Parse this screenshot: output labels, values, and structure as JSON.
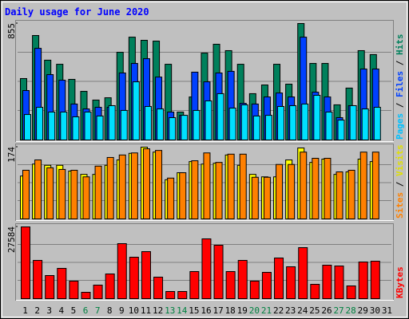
{
  "chart_data": [
    {
      "type": "bar",
      "title": "Daily usage for June 2020",
      "ylim": [
        0,
        855
      ],
      "yticks": [
        855
      ],
      "grid": true,
      "legend_separator": " / ",
      "series": [
        {
          "name": "Hits",
          "color": "#00805c",
          "label_color": "#00805c",
          "values": [
            451,
            767,
            586,
            556,
            445,
            357,
            293,
            310,
            644,
            755,
            732,
            726,
            556,
            205,
            316,
            638,
            703,
            656,
            556,
            340,
            404,
            556,
            410,
            855,
            562,
            562,
            258,
            381,
            656,
            627,
            null
          ]
        },
        {
          "name": "Files",
          "color": "#0040ff",
          "label_color": "#0040ff",
          "values": [
            363,
            673,
            480,
            439,
            264,
            228,
            240,
            240,
            492,
            562,
            597,
            462,
            205,
            181,
            498,
            427,
            492,
            504,
            269,
            264,
            316,
            345,
            316,
            755,
            351,
            316,
            164,
            252,
            521,
            521,
            null
          ]
        },
        {
          "name": "Pages",
          "color": "#00e0ff",
          "label_color": "#00c0ff",
          "values": [
            187,
            240,
            205,
            205,
            170,
            205,
            176,
            252,
            217,
            427,
            246,
            228,
            164,
            181,
            217,
            287,
            340,
            234,
            258,
            176,
            181,
            246,
            252,
            264,
            328,
            205,
            146,
            252,
            228,
            240,
            null
          ]
        }
      ]
    },
    {
      "type": "bar",
      "ylim": [
        0,
        174
      ],
      "yticks": [
        174
      ],
      "grid": true,
      "legend_separator": " / ",
      "series": [
        {
          "name": "Visits",
          "color": "#ffff00",
          "label_color": "#e0e000",
          "values": [
            104,
            133,
            130,
            130,
            116,
            108,
            108,
            130,
            143,
            159,
            174,
            162,
            95,
            112,
            139,
            133,
            135,
            155,
            130,
            108,
            102,
            102,
            143,
            172,
            137,
            145,
            108,
            114,
            145,
            139,
            null
          ]
        },
        {
          "name": "Sites",
          "color": "#ff8000",
          "label_color": "#ff8000",
          "values": [
            118,
            143,
            124,
            120,
            118,
            102,
            128,
            149,
            155,
            160,
            170,
            166,
            99,
            112,
            141,
            160,
            137,
            157,
            157,
            101,
            101,
            132,
            132,
            162,
            147,
            147,
            114,
            118,
            162,
            162,
            null
          ]
        }
      ]
    },
    {
      "type": "bar",
      "ylim": [
        0,
        27584
      ],
      "yticks": [
        27584
      ],
      "grid": true,
      "categories": [
        "1",
        "2",
        "3",
        "4",
        "5",
        "6",
        "7",
        "8",
        "9",
        "10",
        "11",
        "12",
        "13",
        "14",
        "15",
        "16",
        "17",
        "18",
        "19",
        "20",
        "21",
        "22",
        "23",
        "24",
        "25",
        "26",
        "27",
        "28",
        "29",
        "30",
        "31"
      ],
      "category_colors": [
        "#000000",
        "#000000",
        "#000000",
        "#000000",
        "#000000",
        "#008040",
        "#008040",
        "#000000",
        "#000000",
        "#000000",
        "#000000",
        "#000000",
        "#008040",
        "#008040",
        "#000000",
        "#000000",
        "#000000",
        "#000000",
        "#000000",
        "#008040",
        "#008040",
        "#000000",
        "#000000",
        "#000000",
        "#000000",
        "#000000",
        "#008040",
        "#008040",
        "#000000",
        "#000000",
        "#000000"
      ],
      "series": [
        {
          "name": "KBytes",
          "color": "#ff0000",
          "label_color": "#ff0000",
          "values": [
            27584,
            14712,
            8888,
            11646,
            6743,
            2452,
            5210,
            9501,
            21148,
            15937,
            18083,
            8275,
            2758,
            2758,
            10421,
            22987,
            20535,
            10421,
            14712,
            6743,
            10114,
            15631,
            12260,
            19616,
            5517,
            12873,
            12566,
            4904,
            14099,
            14405,
            null
          ]
        }
      ]
    }
  ]
}
